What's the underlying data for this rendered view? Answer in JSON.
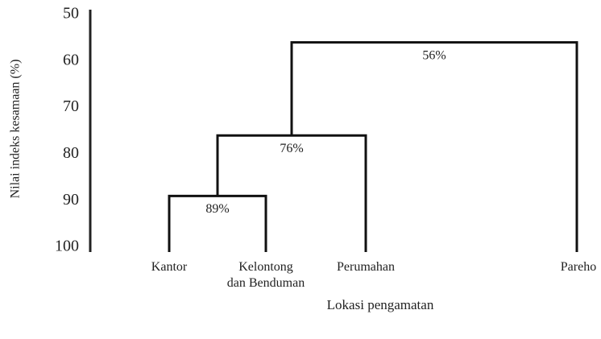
{
  "chart_data": {
    "type": "dendrogram",
    "ylabel": "Nilai indeks kesamaan (%)",
    "xlabel": "Lokasi pengamatan",
    "categories": [
      "Kantor",
      "Kelontong\ndan Benduman",
      "Perumahan",
      "Pareho"
    ],
    "merges": [
      {
        "left": 0,
        "right": 1,
        "value": 89,
        "value_label": "89%"
      },
      {
        "left": 4,
        "right": 2,
        "value": 76,
        "value_label": "76%"
      },
      {
        "left": 5,
        "right": 3,
        "value": 56,
        "value_label": "56%"
      }
    ],
    "ylim": [
      50,
      100
    ],
    "yticks": [
      50,
      60,
      70,
      80,
      90,
      100
    ],
    "y_inverted": true,
    "color": "#111111",
    "grid": false
  }
}
